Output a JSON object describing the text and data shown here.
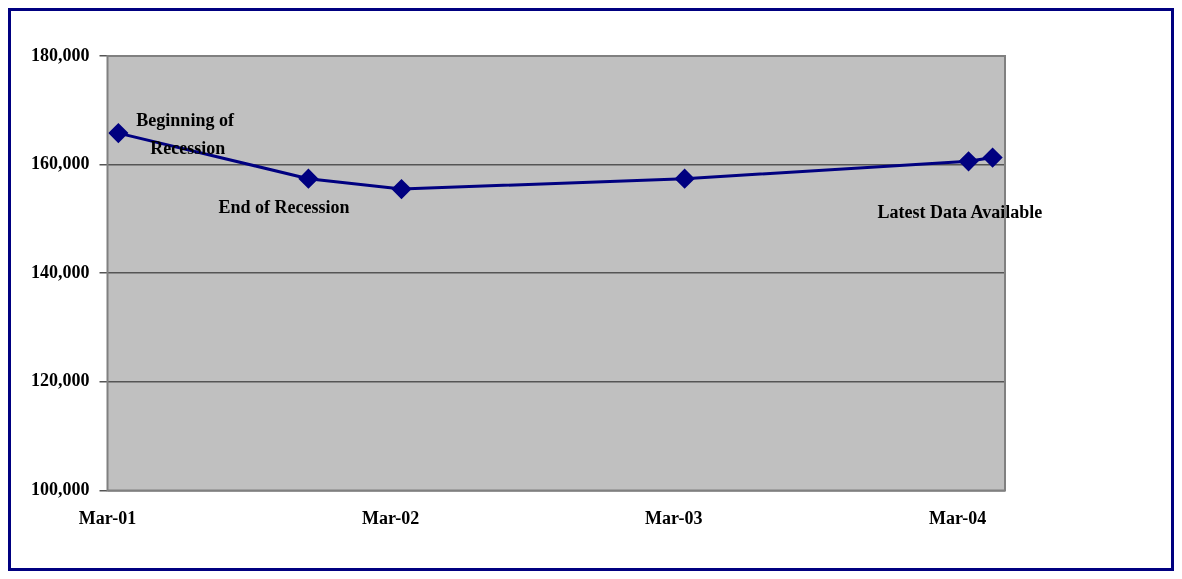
{
  "chart_data": {
    "type": "line",
    "x": [
      "2001-03-15",
      "2001-11-15",
      "2002-03-15",
      "2003-03-15",
      "2004-03-15",
      "2004-04-15"
    ],
    "series": [
      {
        "color": "#000080",
        "values": [
          165800,
          157400,
          155500,
          157400,
          160600,
          161300
        ]
      }
    ],
    "xlim": [
      "2001-03-01",
      "2004-05-01"
    ],
    "xticks": [
      {
        "value": "2001-03-01",
        "label": "Mar-01"
      },
      {
        "value": "2002-03-01",
        "label": "Mar-02"
      },
      {
        "value": "2003-03-01",
        "label": "Mar-03"
      },
      {
        "value": "2004-03-01",
        "label": "Mar-04"
      }
    ],
    "ylim": [
      100000,
      180000
    ],
    "yticks": [
      {
        "value": 100000,
        "label": "100,000"
      },
      {
        "value": 120000,
        "label": "120,000"
      },
      {
        "value": 140000,
        "label": "140,000"
      },
      {
        "value": 160000,
        "label": "160,000"
      },
      {
        "value": 180000,
        "label": "180,000"
      }
    ],
    "grid": "y",
    "legend": false,
    "marker": "diamond",
    "line_style": "solid",
    "annotations": [
      {
        "text": "Beginning of Recession",
        "x": "2001-03-15",
        "y": 165800
      },
      {
        "text": "End of Recession",
        "x": "2001-11-15",
        "y": 157400
      },
      {
        "text": "Latest Data Available",
        "x": "2004-04-15",
        "y": 161300
      }
    ]
  }
}
